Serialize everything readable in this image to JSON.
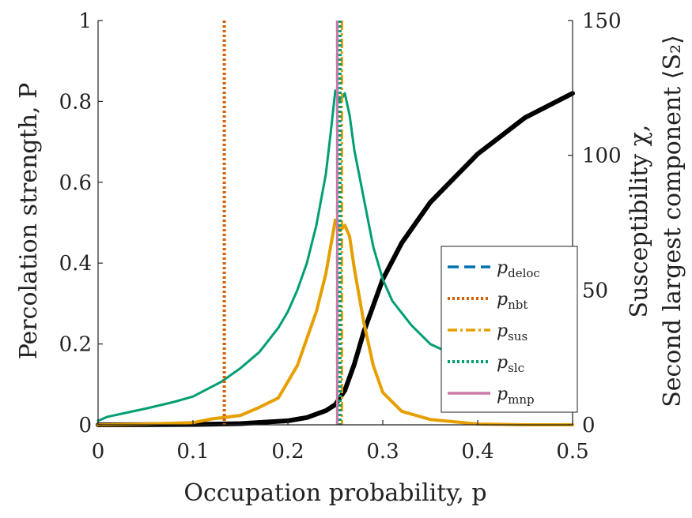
{
  "chart_data": {
    "type": "line",
    "xlabel": "Occupation probability, p",
    "ylabel_left": "Percolation strength, P",
    "ylabel_right_line1": "Susceptibility χ,",
    "ylabel_right_line2": "Second largest component ⟨S₂⟩",
    "xlim": [
      0,
      0.5
    ],
    "ylim_left": [
      0,
      1
    ],
    "ylim_right": [
      0,
      150
    ],
    "x_ticks": [
      "0",
      "0.1",
      "0.2",
      "0.3",
      "0.4",
      "0.5"
    ],
    "y_left_ticks": [
      "0",
      "0.2",
      "0.4",
      "0.6",
      "0.8",
      "1"
    ],
    "y_right_ticks": [
      "0",
      "50",
      "100",
      "150"
    ],
    "grid": false,
    "legend_position": "lower-right",
    "series": [
      {
        "axis": "left",
        "color": "#000000",
        "style": "solid",
        "x": [
          0,
          0.1,
          0.15,
          0.2,
          0.22,
          0.24,
          0.25,
          0.26,
          0.27,
          0.28,
          0.3,
          0.32,
          0.35,
          0.4,
          0.45,
          0.5
        ],
        "y": [
          0,
          0.001,
          0.003,
          0.01,
          0.018,
          0.035,
          0.05,
          0.085,
          0.15,
          0.23,
          0.36,
          0.45,
          0.55,
          0.67,
          0.76,
          0.82
        ]
      },
      {
        "axis": "right",
        "color": "#009E73",
        "style": "solid",
        "x": [
          0,
          0.01,
          0.03,
          0.05,
          0.08,
          0.1,
          0.13,
          0.15,
          0.17,
          0.19,
          0.2,
          0.21,
          0.22,
          0.23,
          0.24,
          0.245,
          0.25,
          0.255,
          0.26,
          0.265,
          0.27,
          0.28,
          0.29,
          0.3,
          0.31,
          0.33,
          0.35,
          0.38,
          0.42,
          0.46,
          0.5
        ],
        "y": [
          1.5,
          3,
          4.5,
          6,
          8.5,
          10.5,
          16,
          21,
          27,
          36,
          42,
          50,
          60,
          74,
          93,
          108,
          124,
          120,
          123,
          115,
          102,
          84,
          66,
          54,
          46,
          37,
          30,
          25,
          17,
          10,
          8
        ]
      },
      {
        "axis": "right",
        "color": "#E69F00",
        "style": "solid",
        "x": [
          0,
          0.05,
          0.1,
          0.12,
          0.15,
          0.17,
          0.19,
          0.2,
          0.21,
          0.22,
          0.23,
          0.24,
          0.245,
          0.25,
          0.255,
          0.26,
          0.265,
          0.27,
          0.28,
          0.29,
          0.3,
          0.32,
          0.35,
          0.4,
          0.45,
          0.5
        ],
        "y": [
          0,
          0.3,
          0.8,
          2.2,
          3.5,
          6.5,
          10,
          16,
          22,
          32,
          42,
          56,
          66,
          76,
          72,
          74,
          70,
          58,
          38,
          22,
          12,
          5,
          2,
          0.3,
          0,
          0
        ]
      }
    ],
    "vlines": [
      {
        "label": "pdeloc",
        "sub": "deloc",
        "x": 0.252,
        "color": "#0072B2",
        "style": "dashed"
      },
      {
        "label": "pnbt",
        "sub": "nbt",
        "x": 0.133,
        "color": "#D55E00",
        "style": "dotted"
      },
      {
        "label": "psus",
        "sub": "sus",
        "x": 0.257,
        "color": "#E69F00",
        "style": "dashdot"
      },
      {
        "label": "pslc",
        "sub": "slc",
        "x": 0.255,
        "color": "#009E73",
        "style": "dotted"
      },
      {
        "label": "pmnp",
        "sub": "mnp",
        "x": 0.252,
        "color": "#CC79A7",
        "style": "solid"
      }
    ]
  }
}
